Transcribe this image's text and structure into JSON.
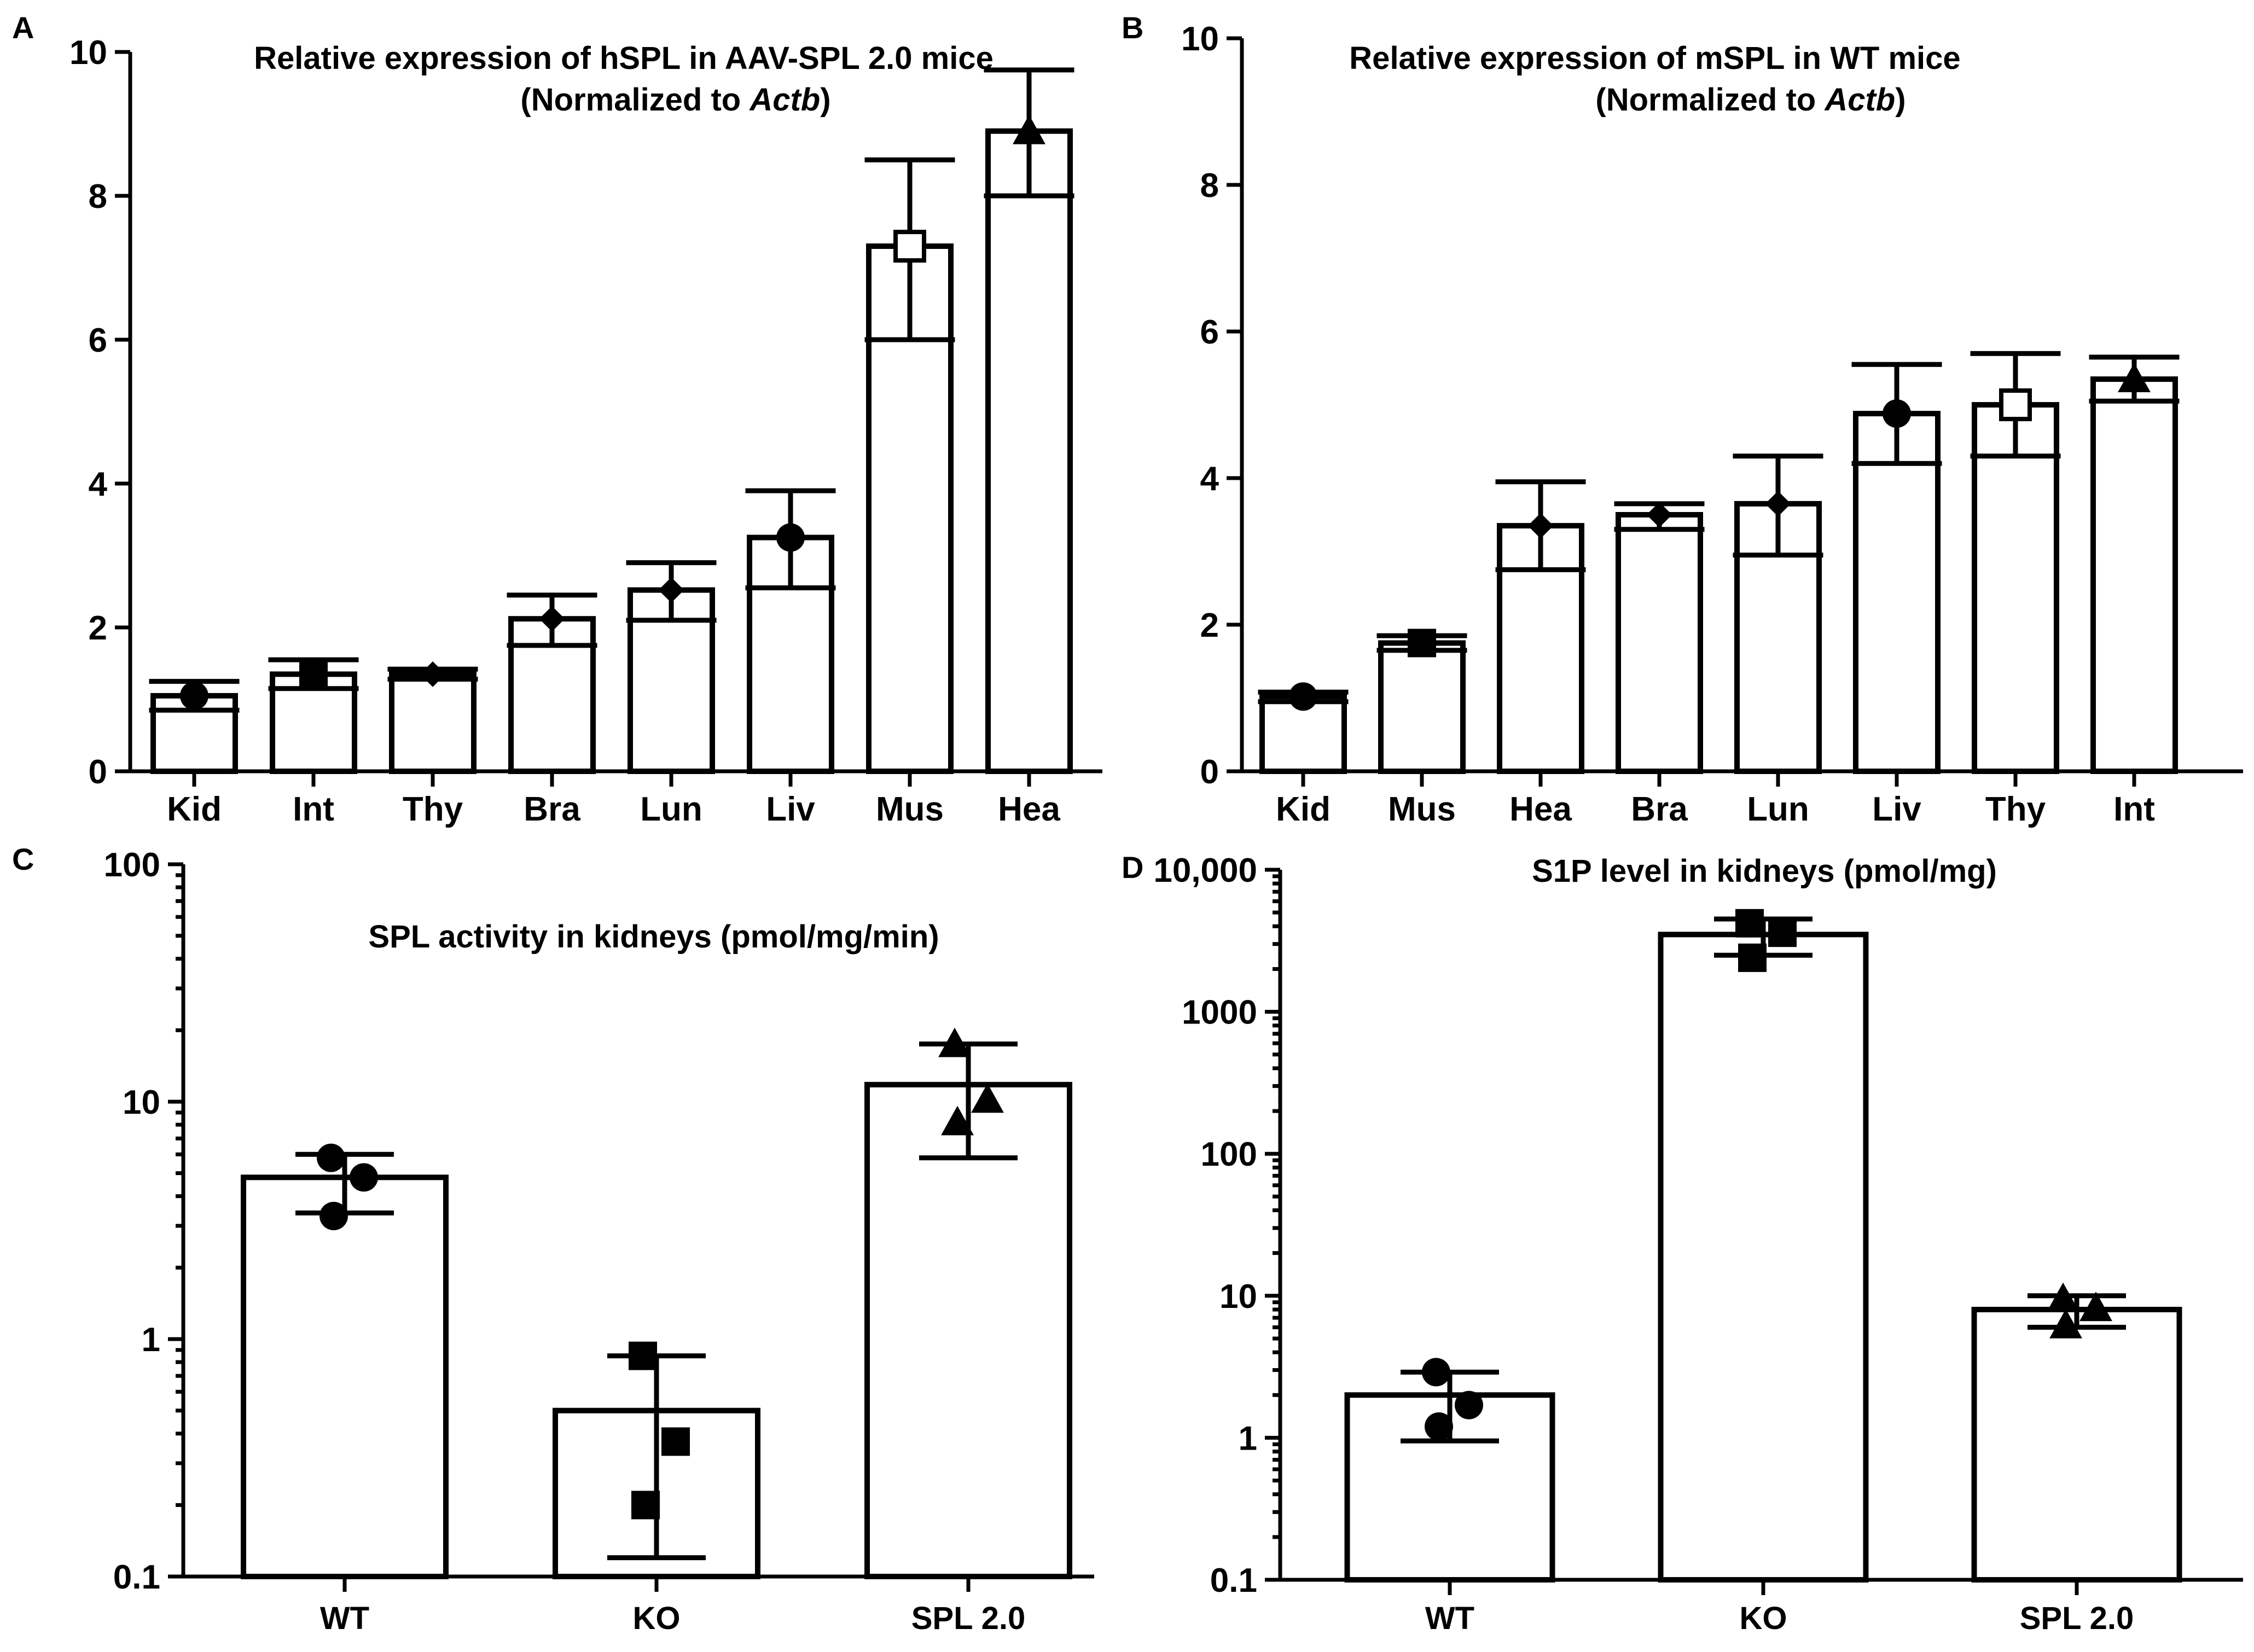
{
  "chart_data": [
    {
      "panel": "A",
      "type": "bar",
      "title": "Relative expression of hSPL in AAV-SPL 2.0 mice",
      "subtitle_prefix": "(Normalized to ",
      "subtitle_italic": "Actb",
      "subtitle_suffix": ")",
      "scale": "linear",
      "ylim": [
        0,
        10
      ],
      "yticks": [
        0,
        2,
        4,
        6,
        8,
        10
      ],
      "ytick_labels": [
        "0",
        "2",
        "4",
        "6",
        "8",
        "10"
      ],
      "categories": [
        "Kid",
        "Int",
        "Thy",
        "Bra",
        "Lun",
        "Liv",
        "Mus",
        "Hea"
      ],
      "values": [
        1.05,
        1.35,
        1.35,
        2.12,
        2.52,
        3.25,
        7.3,
        8.9
      ],
      "err_low": [
        0.85,
        1.15,
        1.28,
        1.75,
        2.1,
        2.55,
        6.0,
        8.0
      ],
      "err_high": [
        1.25,
        1.55,
        1.42,
        2.45,
        2.9,
        3.9,
        8.5,
        9.75
      ],
      "markers": [
        "circle",
        "square",
        "diamond",
        "diamond",
        "diamond",
        "circle",
        "square-open",
        "triangle"
      ]
    },
    {
      "panel": "B",
      "type": "bar",
      "title": "Relative expression of mSPL in WT mice",
      "subtitle_prefix": "(Normalized to ",
      "subtitle_italic": "Actb",
      "subtitle_suffix": ")",
      "scale": "linear",
      "ylim": [
        0,
        10
      ],
      "yticks": [
        0,
        2,
        4,
        6,
        8,
        10
      ],
      "ytick_labels": [
        "0",
        "2",
        "4",
        "6",
        "8",
        "10"
      ],
      "categories": [
        "Kid",
        "Mus",
        "Hea",
        "Bra",
        "Lun",
        "Liv",
        "Thy",
        "Int"
      ],
      "values": [
        1.02,
        1.75,
        3.35,
        3.5,
        3.65,
        4.88,
        5.0,
        5.35
      ],
      "err_low": [
        0.95,
        1.65,
        2.75,
        3.3,
        2.95,
        4.2,
        4.3,
        5.05
      ],
      "err_high": [
        1.08,
        1.85,
        3.95,
        3.65,
        4.3,
        5.55,
        5.7,
        5.65
      ],
      "markers": [
        "circle",
        "square",
        "diamond",
        "diamond",
        "diamond",
        "circle",
        "square-open",
        "triangle"
      ]
    },
    {
      "panel": "C",
      "type": "bar",
      "title": "SPL activity in kidneys (pmol/mg/min)",
      "scale": "log",
      "ylim": [
        0.1,
        100
      ],
      "yticks": [
        0.1,
        1,
        10,
        100
      ],
      "ytick_labels": [
        "0.1",
        "1",
        "10",
        "100"
      ],
      "categories": [
        "WT",
        "KO",
        "SPL 2.0"
      ],
      "values": [
        4.8,
        0.5,
        11.8
      ],
      "err_low": [
        3.4,
        0.12,
        5.8
      ],
      "err_high": [
        6.0,
        0.85,
        17.5
      ],
      "points": [
        [
          5.8,
          4.8,
          3.3
        ],
        [
          0.85,
          0.37,
          0.2
        ],
        [
          17.5,
          10.2,
          8.2
        ]
      ],
      "markers": [
        "circle",
        "square",
        "triangle"
      ]
    },
    {
      "panel": "D",
      "type": "bar",
      "title": "S1P level in kidneys (pmol/mg)",
      "scale": "log",
      "ylim": [
        0.1,
        10000
      ],
      "yticks": [
        0.1,
        1,
        10,
        100,
        1000,
        10000
      ],
      "ytick_labels": [
        "0.1",
        "1",
        "10",
        "100",
        "1000",
        "10,000"
      ],
      "categories": [
        "WT",
        "KO",
        "SPL 2.0"
      ],
      "values": [
        2.0,
        3500,
        8.0
      ],
      "err_low": [
        0.95,
        2500,
        6.0
      ],
      "err_high": [
        2.9,
        4500,
        10.0
      ],
      "points": [
        [
          2.9,
          1.7,
          1.2
        ],
        [
          4200,
          3600,
          2400
        ],
        [
          9.5,
          8.2,
          6.2
        ]
      ],
      "markers": [
        "circle",
        "square",
        "triangle"
      ]
    }
  ]
}
